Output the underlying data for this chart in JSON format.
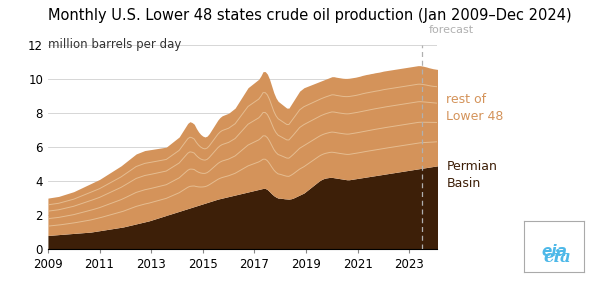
{
  "title": "Monthly U.S. Lower 48 states crude oil production (Jan 2009–Dec 2024)",
  "ylabel": "million barrels per day",
  "forecast_label": "forecast",
  "label_permian": "Permian\nBasin",
  "label_rest": "rest of\nLower 48",
  "color_permian": "#3d1f08",
  "color_rest": "#d4935a",
  "color_sublines": "#e8c49a",
  "forecast_line_color": "#b0b0b0",
  "forecast_x": 2023.5,
  "ylim": [
    0,
    12
  ],
  "xlim": [
    2009.0,
    2024.08
  ],
  "xticks": [
    2009,
    2011,
    2013,
    2015,
    2017,
    2019,
    2021,
    2023
  ],
  "yticks": [
    0,
    2,
    4,
    6,
    8,
    10,
    12
  ],
  "title_fontsize": 10.5,
  "ylabel_fontsize": 8.5,
  "tick_fontsize": 8.5,
  "label_fontsize": 9,
  "background_color": "#ffffff",
  "permian": [
    0.8,
    0.81,
    0.82,
    0.83,
    0.84,
    0.85,
    0.86,
    0.87,
    0.88,
    0.89,
    0.9,
    0.91,
    0.92,
    0.93,
    0.94,
    0.95,
    0.96,
    0.97,
    0.98,
    0.99,
    1.0,
    1.02,
    1.04,
    1.06,
    1.08,
    1.1,
    1.12,
    1.14,
    1.16,
    1.18,
    1.2,
    1.22,
    1.24,
    1.26,
    1.28,
    1.3,
    1.33,
    1.36,
    1.39,
    1.42,
    1.45,
    1.48,
    1.51,
    1.54,
    1.57,
    1.6,
    1.63,
    1.66,
    1.7,
    1.74,
    1.78,
    1.82,
    1.86,
    1.9,
    1.94,
    1.98,
    2.02,
    2.06,
    2.1,
    2.14,
    2.18,
    2.22,
    2.26,
    2.3,
    2.34,
    2.38,
    2.42,
    2.46,
    2.5,
    2.54,
    2.58,
    2.62,
    2.66,
    2.7,
    2.74,
    2.78,
    2.82,
    2.86,
    2.9,
    2.94,
    2.97,
    3.0,
    3.03,
    3.06,
    3.09,
    3.12,
    3.15,
    3.18,
    3.21,
    3.24,
    3.27,
    3.3,
    3.33,
    3.36,
    3.39,
    3.42,
    3.45,
    3.48,
    3.51,
    3.54,
    3.57,
    3.57,
    3.5,
    3.38,
    3.25,
    3.14,
    3.06,
    3.0,
    3.0,
    2.98,
    2.96,
    2.95,
    2.94,
    2.96,
    3.0,
    3.06,
    3.12,
    3.18,
    3.24,
    3.3,
    3.4,
    3.5,
    3.6,
    3.7,
    3.8,
    3.9,
    4.0,
    4.08,
    4.14,
    4.18,
    4.2,
    4.22,
    4.22,
    4.2,
    4.18,
    4.16,
    4.14,
    4.12,
    4.1,
    4.08,
    4.08,
    4.1,
    4.12,
    4.14,
    4.16,
    4.18,
    4.2,
    4.22,
    4.24,
    4.26,
    4.28,
    4.3,
    4.32,
    4.34,
    4.36,
    4.38,
    4.4,
    4.42,
    4.44,
    4.46,
    4.48,
    4.5,
    4.52,
    4.54,
    4.56,
    4.58,
    4.6,
    4.62,
    4.64,
    4.66,
    4.68,
    4.7,
    4.72,
    4.74,
    4.76,
    4.78,
    4.8,
    4.82,
    4.84,
    4.86,
    4.88,
    4.9,
    4.92,
    4.94,
    4.96,
    4.98,
    5.0,
    5.02,
    5.04,
    5.06,
    5.08,
    5.1,
    5.1,
    5.08,
    5.06,
    5.05,
    5.04,
    5.03,
    5.05,
    5.07
  ],
  "total": [
    3.0,
    3.02,
    3.04,
    3.06,
    3.08,
    3.1,
    3.14,
    3.18,
    3.22,
    3.26,
    3.3,
    3.34,
    3.38,
    3.44,
    3.5,
    3.56,
    3.62,
    3.68,
    3.74,
    3.8,
    3.86,
    3.92,
    3.98,
    4.04,
    4.1,
    4.18,
    4.26,
    4.34,
    4.42,
    4.5,
    4.58,
    4.66,
    4.74,
    4.82,
    4.9,
    5.0,
    5.1,
    5.2,
    5.3,
    5.4,
    5.5,
    5.6,
    5.65,
    5.7,
    5.75,
    5.8,
    5.82,
    5.84,
    5.86,
    5.88,
    5.9,
    5.92,
    5.94,
    5.96,
    5.98,
    6.0,
    6.1,
    6.2,
    6.3,
    6.4,
    6.5,
    6.6,
    6.8,
    7.0,
    7.2,
    7.4,
    7.5,
    7.45,
    7.35,
    7.1,
    6.9,
    6.75,
    6.65,
    6.6,
    6.65,
    6.8,
    7.0,
    7.2,
    7.4,
    7.6,
    7.75,
    7.85,
    7.9,
    7.95,
    8.0,
    8.1,
    8.2,
    8.3,
    8.5,
    8.7,
    8.9,
    9.1,
    9.3,
    9.5,
    9.6,
    9.7,
    9.8,
    9.9,
    10.0,
    10.2,
    10.45,
    10.45,
    10.3,
    10.0,
    9.6,
    9.2,
    8.9,
    8.7,
    8.6,
    8.5,
    8.4,
    8.3,
    8.3,
    8.5,
    8.7,
    8.9,
    9.1,
    9.3,
    9.4,
    9.5,
    9.55,
    9.6,
    9.65,
    9.7,
    9.75,
    9.8,
    9.85,
    9.9,
    9.95,
    10.0,
    10.05,
    10.1,
    10.15,
    10.15,
    10.12,
    10.1,
    10.08,
    10.06,
    10.05,
    10.05,
    10.06,
    10.08,
    10.1,
    10.12,
    10.15,
    10.18,
    10.22,
    10.25,
    10.28,
    10.3,
    10.33,
    10.35,
    10.38,
    10.4,
    10.42,
    10.45,
    10.48,
    10.5,
    10.52,
    10.54,
    10.56,
    10.58,
    10.6,
    10.62,
    10.64,
    10.66,
    10.68,
    10.7,
    10.72,
    10.74,
    10.76,
    10.78,
    10.8,
    10.8,
    10.78,
    10.75,
    10.72,
    10.68,
    10.65,
    10.62,
    10.6,
    10.58,
    10.55,
    10.52,
    10.5,
    10.48,
    10.45,
    10.45,
    10.46,
    10.48,
    10.5,
    10.52,
    10.54,
    10.56,
    10.58,
    10.6,
    10.62,
    10.63,
    10.65,
    10.66
  ]
}
